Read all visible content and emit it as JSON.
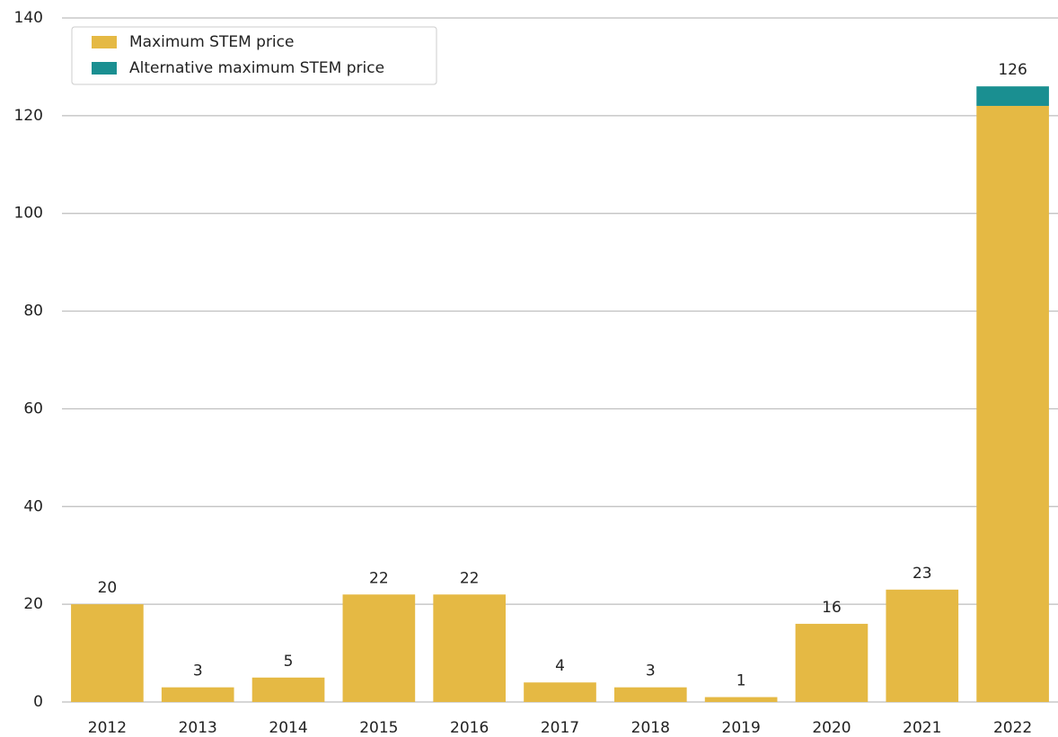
{
  "chart_data": {
    "type": "stacked_bar",
    "categories": [
      "2012",
      "2013",
      "2014",
      "2015",
      "2016",
      "2017",
      "2018",
      "2019",
      "2020",
      "2021",
      "2022"
    ],
    "series": [
      {
        "name": "Maximum STEM price",
        "color": "#e5b944",
        "values": [
          20,
          3,
          5,
          22,
          22,
          4,
          3,
          1,
          16,
          23,
          122
        ]
      },
      {
        "name": "Alternative maximum STEM price",
        "color": "#1a8f91",
        "values": [
          0,
          0,
          0,
          0,
          0,
          0,
          0,
          0,
          0,
          0,
          4
        ]
      }
    ],
    "totals": [
      20,
      3,
      5,
      22,
      22,
      4,
      3,
      1,
      16,
      23,
      126
    ],
    "ylim": [
      0,
      140
    ],
    "yticks": [
      0,
      20,
      40,
      60,
      80,
      100,
      120,
      140
    ],
    "grid": true,
    "legend": "top-left"
  }
}
